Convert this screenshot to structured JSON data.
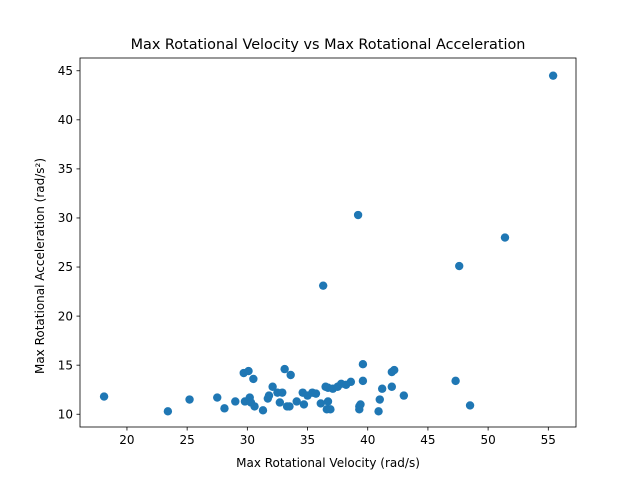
{
  "chart_data": {
    "type": "scatter",
    "title": "Max Rotational Velocity vs Max Rotational Acceleration",
    "xlabel": "Max Rotational Velocity (rad/s)",
    "ylabel": "Max Rotational Acceleration (rad/s²)",
    "xlim": [
      16.1,
      57.3
    ],
    "ylim": [
      8.7,
      46.3
    ],
    "xticks": [
      20,
      25,
      30,
      35,
      40,
      45,
      50,
      55
    ],
    "yticks": [
      10,
      15,
      20,
      25,
      30,
      35,
      40,
      45
    ],
    "grid": false,
    "legend": "none",
    "point_color": "#1f77b4",
    "series": [
      {
        "x": [
          18.1,
          23.4,
          25.2,
          27.5,
          28.1,
          29.0,
          29.7,
          29.8,
          30.1,
          30.2,
          30.3,
          30.5,
          30.6,
          31.3,
          31.7,
          31.8,
          32.1,
          32.5,
          32.7,
          32.9,
          33.1,
          33.3,
          33.5,
          33.6,
          34.1,
          34.6,
          34.7,
          35.0,
          35.4,
          35.7,
          36.1,
          36.3,
          36.5,
          36.6,
          36.7,
          36.7,
          36.9,
          37.1,
          37.5,
          37.8,
          38.2,
          38.6,
          39.2,
          39.3,
          39.3,
          39.4,
          39.6,
          39.6,
          40.9,
          41.0,
          41.2,
          42.0,
          42.0,
          42.2,
          43.0,
          47.3,
          47.6,
          48.5,
          51.4,
          55.4
        ],
        "y": [
          11.8,
          10.3,
          11.5,
          11.7,
          10.6,
          11.3,
          14.2,
          11.3,
          14.4,
          11.7,
          11.2,
          13.6,
          10.8,
          10.4,
          11.6,
          11.9,
          12.8,
          12.2,
          11.2,
          12.2,
          14.6,
          10.8,
          10.8,
          14.0,
          11.3,
          12.2,
          11.0,
          11.9,
          12.2,
          12.1,
          11.1,
          23.1,
          12.8,
          10.5,
          11.3,
          12.7,
          10.5,
          12.6,
          12.8,
          13.1,
          13.0,
          13.3,
          30.3,
          10.8,
          10.5,
          11.0,
          15.1,
          13.4,
          10.3,
          11.5,
          12.6,
          12.8,
          14.3,
          14.5,
          11.9,
          13.4,
          25.1,
          10.9,
          28.0,
          44.5
        ]
      }
    ]
  }
}
